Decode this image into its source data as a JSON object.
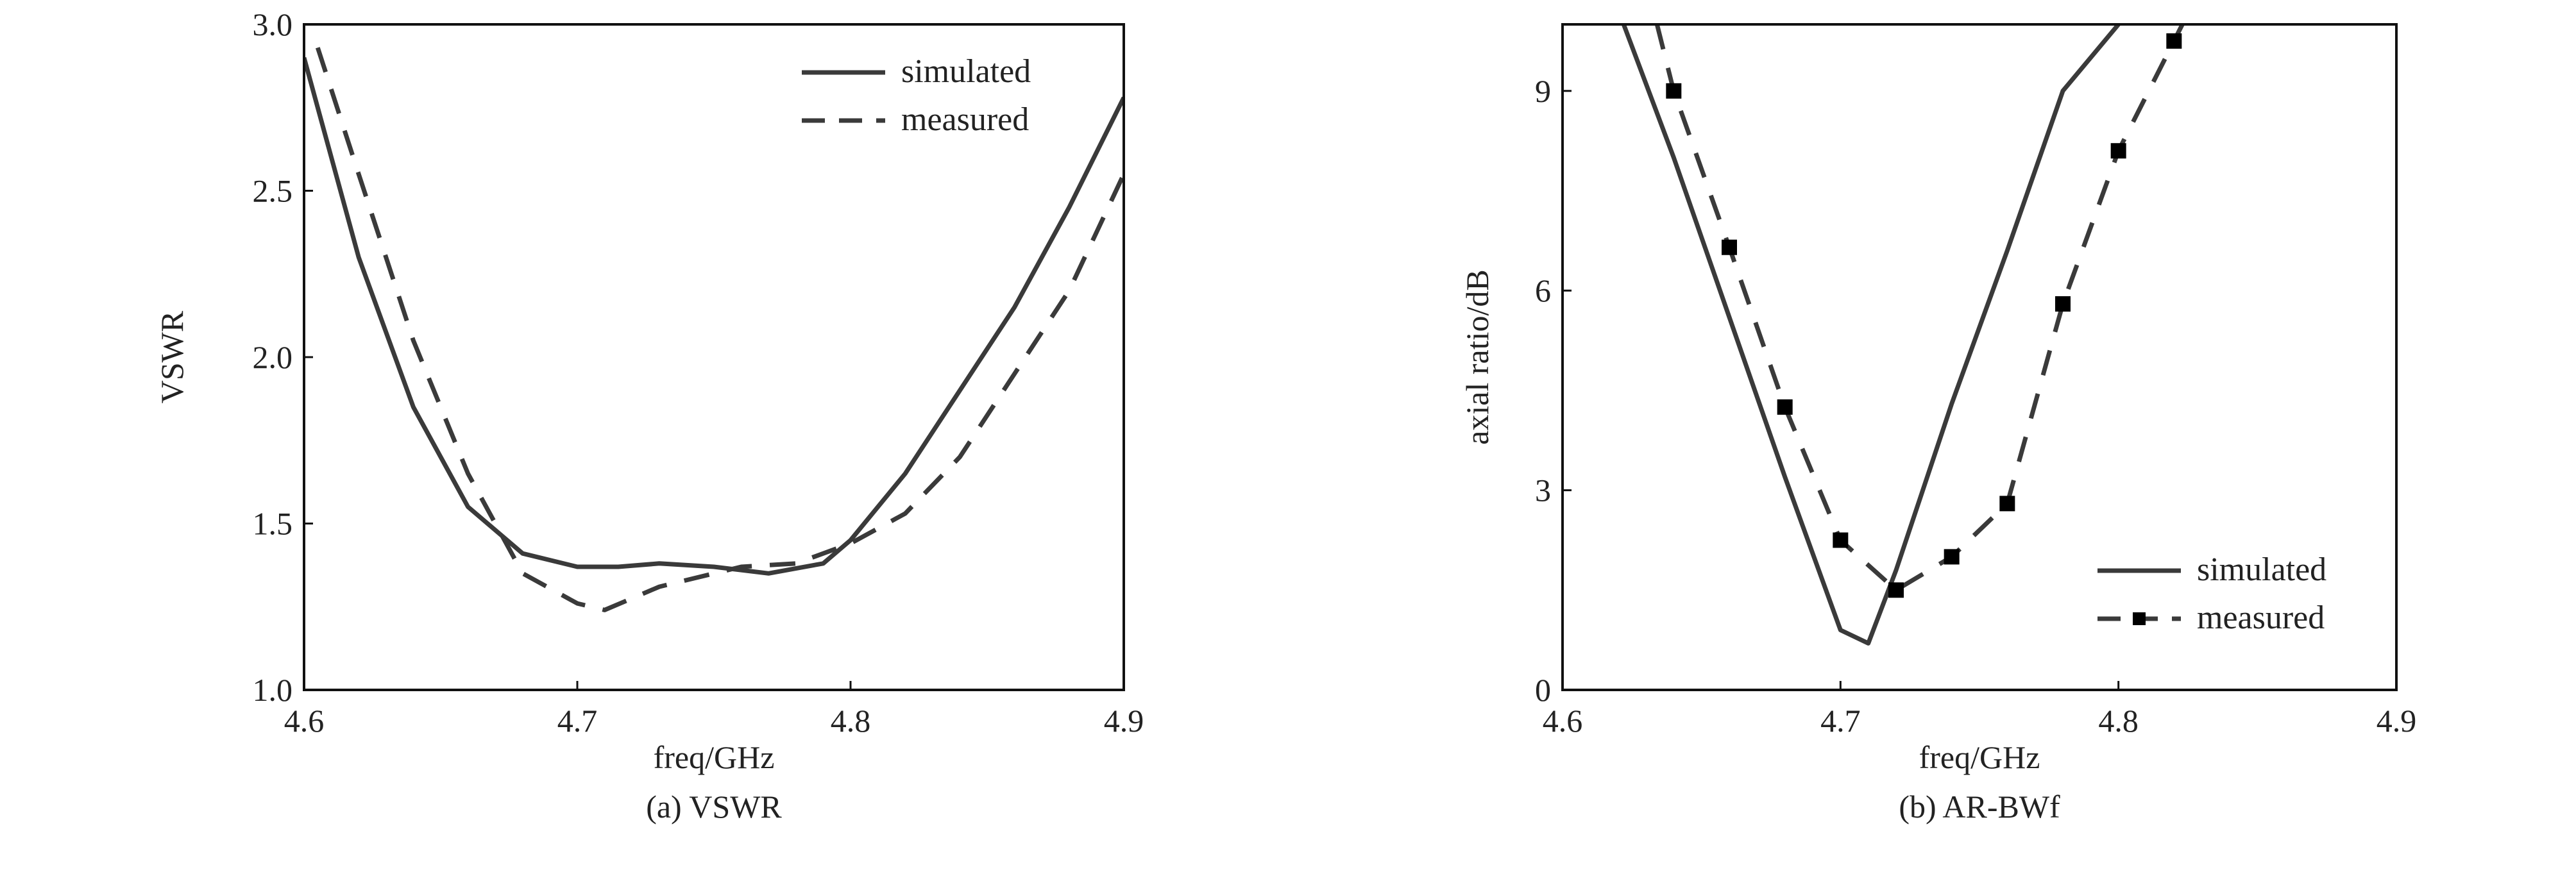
{
  "chart_data": [
    {
      "type": "line",
      "title": "",
      "caption": "(a) VSWR",
      "xlabel": "freq/GHz",
      "ylabel": "VSWR",
      "xlim": [
        4.6,
        4.9
      ],
      "ylim": [
        1.0,
        3.0
      ],
      "xticks": [
        "4.6",
        "4.7",
        "4.8",
        "4.9"
      ],
      "yticks": [
        "1.0",
        "1.5",
        "2.0",
        "2.5",
        "3.0"
      ],
      "grid": false,
      "legend": "top-right",
      "series": [
        {
          "name": "simulated",
          "style": "solid",
          "x": [
            4.6,
            4.62,
            4.64,
            4.66,
            4.68,
            4.7,
            4.715,
            4.73,
            4.75,
            4.77,
            4.79,
            4.8,
            4.82,
            4.84,
            4.86,
            4.88,
            4.9
          ],
          "y": [
            2.9,
            2.3,
            1.85,
            1.55,
            1.41,
            1.37,
            1.37,
            1.38,
            1.37,
            1.35,
            1.38,
            1.45,
            1.65,
            1.9,
            2.15,
            2.45,
            2.78
          ]
        },
        {
          "name": "measured",
          "style": "dashed",
          "x": [
            4.605,
            4.62,
            4.64,
            4.66,
            4.68,
            4.7,
            4.71,
            4.73,
            4.76,
            4.78,
            4.8,
            4.82,
            4.84,
            4.86,
            4.88,
            4.9
          ],
          "y": [
            2.93,
            2.55,
            2.05,
            1.65,
            1.35,
            1.26,
            1.24,
            1.31,
            1.37,
            1.38,
            1.44,
            1.53,
            1.7,
            1.95,
            2.2,
            2.55
          ]
        }
      ]
    },
    {
      "type": "line",
      "title": "",
      "caption": "(b) AR-BWf",
      "xlabel": "freq/GHz",
      "ylabel": "axial ratio/dB",
      "xlim": [
        4.6,
        4.9
      ],
      "ylim": [
        0,
        10
      ],
      "xticks": [
        "4.6",
        "4.7",
        "4.8",
        "4.9"
      ],
      "yticks": [
        "0",
        "3",
        "6",
        "9"
      ],
      "grid": false,
      "legend": "bottom-right",
      "series": [
        {
          "name": "simulated",
          "style": "solid",
          "x": [
            4.622,
            4.64,
            4.66,
            4.68,
            4.7,
            4.71,
            4.72,
            4.74,
            4.76,
            4.78,
            4.8
          ],
          "y": [
            10,
            8.0,
            5.6,
            3.2,
            0.9,
            0.7,
            1.8,
            4.3,
            6.6,
            9.0,
            10
          ]
        },
        {
          "name": "measured",
          "style": "dashed-square",
          "x": [
            4.634,
            4.64,
            4.66,
            4.68,
            4.7,
            4.72,
            4.74,
            4.76,
            4.78,
            4.8,
            4.82,
            4.823
          ],
          "y": [
            10,
            9.0,
            6.65,
            4.25,
            2.25,
            1.5,
            2.0,
            2.8,
            5.8,
            8.1,
            9.75,
            10
          ],
          "markers_x": [
            4.64,
            4.66,
            4.68,
            4.7,
            4.72,
            4.74,
            4.76,
            4.78,
            4.8,
            4.82
          ],
          "markers_y": [
            9.0,
            6.65,
            4.25,
            2.25,
            1.5,
            2.0,
            2.8,
            5.8,
            8.1,
            9.75
          ]
        }
      ]
    }
  ],
  "colors": {
    "line": "#3a3a3a",
    "axis": "#111111"
  }
}
